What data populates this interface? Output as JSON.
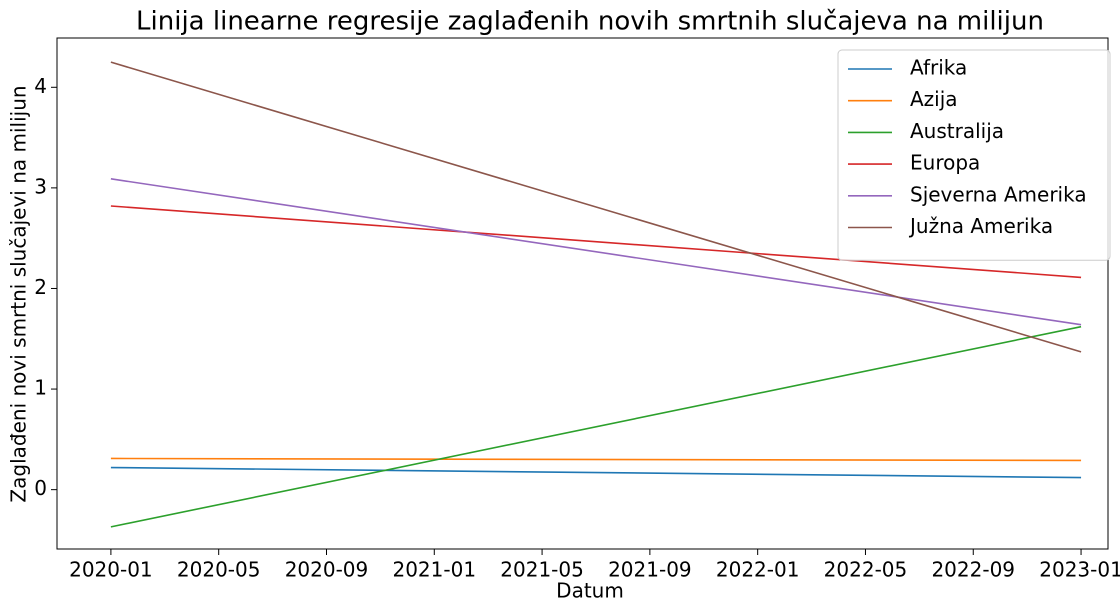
{
  "chart_data": {
    "type": "line",
    "title": "Linija linearne regresije zaglađenih novih smrtnih slučajeva na milijun",
    "x_label": "Datum",
    "y_label": "Zaglađeni novi smrtni slučajevi na milijun",
    "x": [
      "2020-01",
      "2023-01"
    ],
    "series": [
      {
        "name": "Afrika",
        "color": "#1f77b4",
        "values": [
          0.22,
          0.12
        ]
      },
      {
        "name": "Azija",
        "color": "#ff7f0e",
        "values": [
          0.31,
          0.29
        ]
      },
      {
        "name": "Australija",
        "color": "#2ca02c",
        "values": [
          -0.37,
          1.62
        ]
      },
      {
        "name": "Europa",
        "color": "#d62728",
        "values": [
          2.82,
          2.11
        ]
      },
      {
        "name": "Sjeverna Amerika",
        "color": "#9467bd",
        "values": [
          3.09,
          1.64
        ]
      },
      {
        "name": "Južna Amerika",
        "color": "#8c564b",
        "values": [
          4.25,
          1.37
        ]
      }
    ],
    "xlim": [
      "2019-11",
      "2023-02"
    ],
    "xticks": [
      "2020-01",
      "2020-05",
      "2020-09",
      "2021-01",
      "2021-05",
      "2021-09",
      "2022-01",
      "2022-05",
      "2022-09",
      "2023-01"
    ],
    "ylim": [
      -0.59,
      4.49
    ],
    "yticks": [
      0,
      1,
      2,
      3,
      4
    ],
    "legend": "upper right"
  }
}
